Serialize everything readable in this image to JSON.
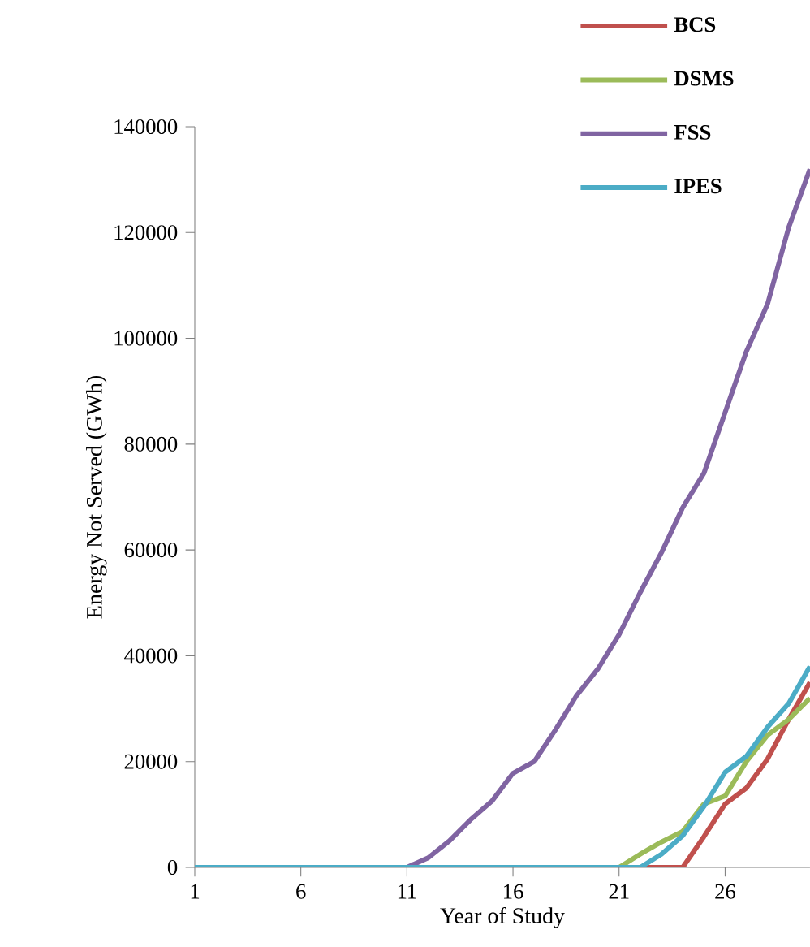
{
  "chart_data": {
    "type": "line",
    "xlabel": "Year of Study",
    "ylabel": "Energy Not Served (GWh)",
    "x": [
      1,
      2,
      3,
      4,
      5,
      6,
      7,
      8,
      9,
      10,
      11,
      12,
      13,
      14,
      15,
      16,
      17,
      18,
      19,
      20,
      21,
      22,
      23,
      24,
      25,
      26,
      27,
      28,
      29,
      30
    ],
    "series": [
      {
        "name": "BCS",
        "color": "#c0504d",
        "values": [
          null,
          null,
          null,
          null,
          null,
          null,
          null,
          null,
          null,
          null,
          null,
          null,
          null,
          null,
          null,
          null,
          null,
          null,
          null,
          null,
          null,
          0,
          0,
          0,
          5800,
          12000,
          15000,
          20500,
          28000,
          35000
        ]
      },
      {
        "name": "DSMS",
        "color": "#9bbb59",
        "values": [
          null,
          null,
          null,
          null,
          null,
          null,
          null,
          null,
          null,
          null,
          null,
          null,
          null,
          null,
          null,
          null,
          null,
          null,
          null,
          null,
          0,
          2500,
          4800,
          6800,
          12000,
          13500,
          20000,
          25000,
          28000,
          32000
        ]
      },
      {
        "name": "FSS",
        "color": "#8064a2",
        "values": [
          0,
          0,
          0,
          0,
          0,
          0,
          0,
          0,
          0,
          0,
          0,
          1800,
          5000,
          9000,
          12500,
          17800,
          20000,
          26000,
          32500,
          37500,
          44000,
          52000,
          59500,
          68000,
          74500,
          86000,
          97500,
          106500,
          121000,
          132000
        ]
      },
      {
        "name": "IPES",
        "color": "#4bacc6",
        "values": [
          0,
          0,
          0,
          0,
          0,
          0,
          0,
          0,
          0,
          0,
          0,
          0,
          0,
          0,
          0,
          0,
          0,
          0,
          0,
          0,
          0,
          0,
          2500,
          6000,
          11500,
          18000,
          21000,
          26500,
          31000,
          38000
        ]
      }
    ],
    "xlim": [
      1,
      30
    ],
    "ylim": [
      0,
      140000
    ],
    "xticks": [
      1,
      6,
      11,
      16,
      21,
      26
    ],
    "yticks": [
      0,
      20000,
      40000,
      60000,
      80000,
      100000,
      120000,
      140000
    ],
    "grid": false,
    "legend": "top right",
    "marker": "none",
    "line_style": "solid"
  }
}
